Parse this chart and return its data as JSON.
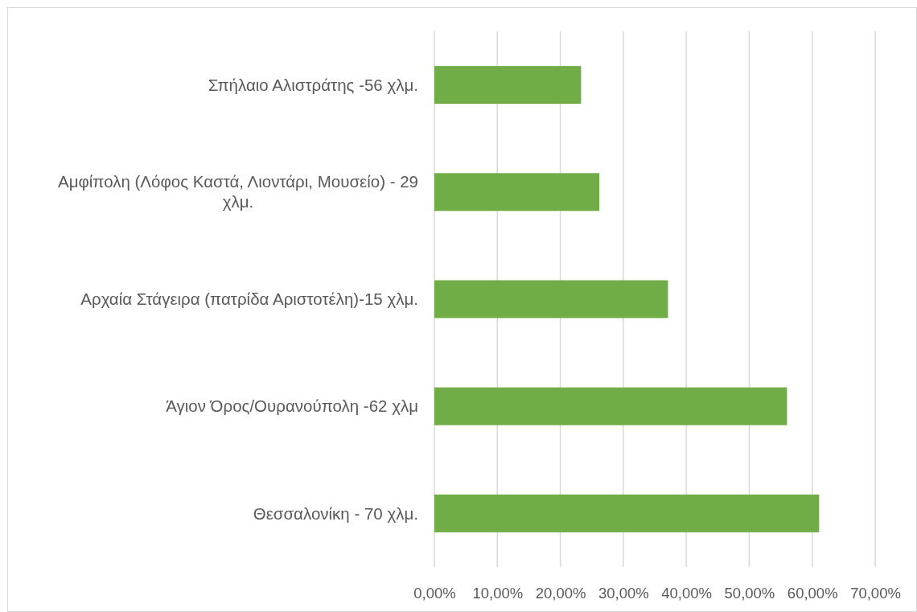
{
  "chart_data": {
    "type": "bar",
    "orientation": "horizontal",
    "categories": [
      "Σπήλαιο Αλιστράτης -56 χλμ.",
      "Αμφίπολη (Λόφος Καστά, Λιοντάρι, Μουσείο) - 29 χλμ.",
      "Αρχαία Στάγειρα (πατρίδα Αριστοτέλη)-15 χλμ.",
      "Άγιον Όρος/Ουρανούπολη -62 χλμ",
      "Θεσσαλονίκη - 70 χλμ."
    ],
    "values": [
      23.3,
      26.2,
      37.1,
      56.0,
      61.1
    ],
    "color": "#70ad47",
    "xlim": [
      0,
      70
    ],
    "xticks": [
      {
        "value": 0,
        "label": "0,00%"
      },
      {
        "value": 10,
        "label": "10,00%"
      },
      {
        "value": 20,
        "label": "20,00%"
      },
      {
        "value": 30,
        "label": "30,00%"
      },
      {
        "value": 40,
        "label": "40,00%"
      },
      {
        "value": 50,
        "label": "50,00%"
      },
      {
        "value": 60,
        "label": "60,00%"
      },
      {
        "value": 70,
        "label": "70,00%"
      }
    ],
    "grid": "x"
  }
}
